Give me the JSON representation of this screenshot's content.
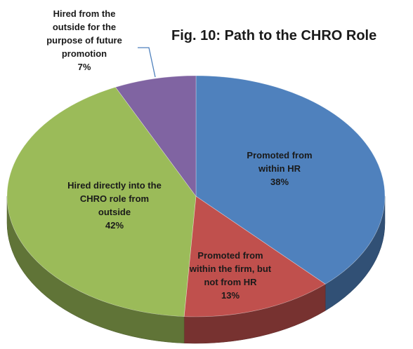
{
  "chart_data": {
    "type": "pie",
    "title": "Fig. 10: Path to the CHRO Role",
    "categories": [
      "Promoted from within HR",
      "Promoted from within the firm, but not from HR",
      "Hired directly into the CHRO role from outside",
      "Hired from the outside for the purpose of future promotion"
    ],
    "values": [
      38,
      13,
      42,
      7
    ],
    "value_labels": [
      "38%",
      "13%",
      "42%",
      "7%"
    ],
    "colors": [
      "#4f81bd",
      "#c0504d",
      "#9bbb59",
      "#8064a2"
    ]
  }
}
